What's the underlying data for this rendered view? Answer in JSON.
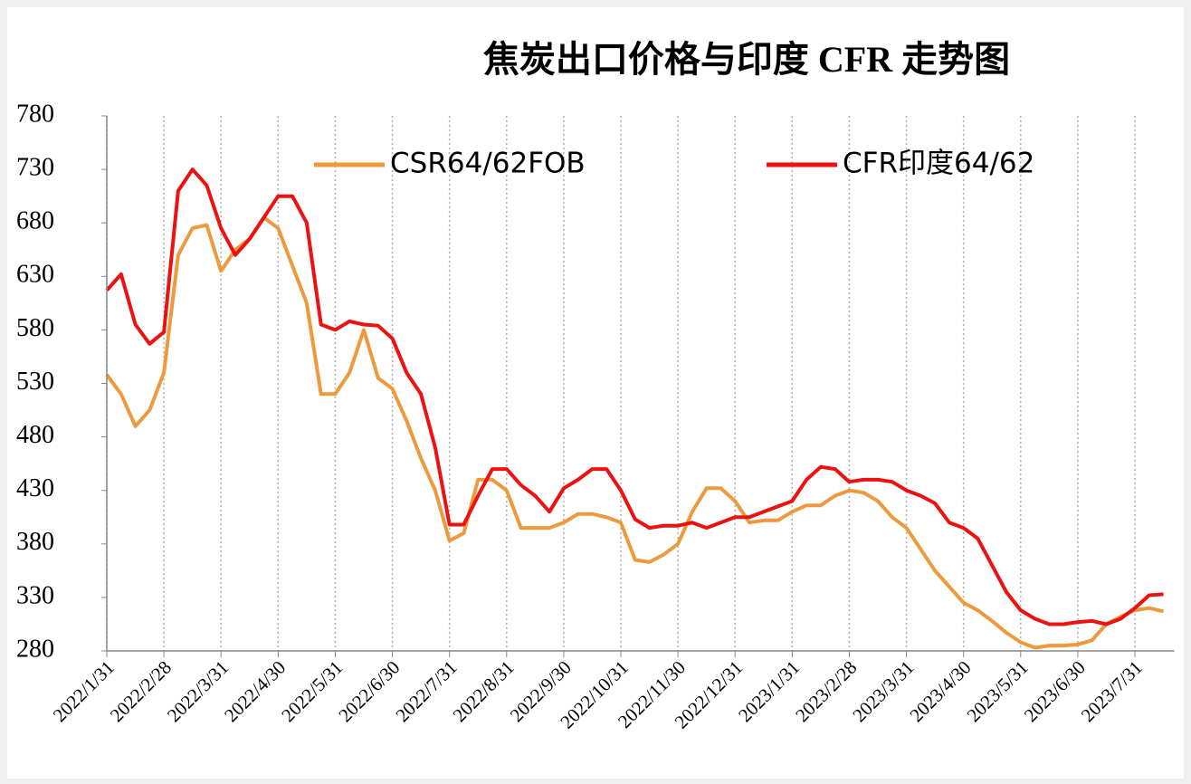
{
  "chart_data": {
    "type": "line",
    "title": "焦炭出口价格与印度 CFR 走势图",
    "categories": [
      "2022/1/31",
      null,
      null,
      null,
      "2022/2/28",
      null,
      null,
      null,
      "2022/3/31",
      null,
      null,
      null,
      "2022/4/30",
      null,
      null,
      null,
      "2022/5/31",
      null,
      null,
      null,
      "2022/6/30",
      null,
      null,
      null,
      "2022/7/31",
      null,
      null,
      null,
      "2022/8/31",
      null,
      null,
      null,
      "2022/9/30",
      null,
      null,
      null,
      "2022/10/31",
      null,
      null,
      null,
      "2022/11/30",
      null,
      null,
      null,
      "2022/12/31",
      null,
      null,
      null,
      "2023/1/31",
      null,
      null,
      null,
      "2023/2/28",
      null,
      null,
      null,
      "2023/3/31",
      null,
      null,
      null,
      "2023/4/30",
      null,
      null,
      null,
      "2023/5/31",
      null,
      null,
      null,
      "2023/6/30",
      null,
      null,
      null,
      "2023/7/31",
      null,
      null
    ],
    "series": [
      {
        "name": "CSR64/62FOB",
        "color": "#ed9a3e",
        "values": [
          538,
          520,
          490,
          505,
          540,
          650,
          675,
          678,
          635,
          655,
          665,
          685,
          675,
          640,
          605,
          520,
          520,
          540,
          580,
          535,
          525,
          495,
          460,
          430,
          383,
          390,
          440,
          440,
          430,
          395,
          395,
          395,
          400,
          408,
          408,
          405,
          400,
          365,
          363,
          370,
          380,
          410,
          432,
          432,
          420,
          400,
          402,
          402,
          410,
          416,
          416,
          425,
          430,
          428,
          420,
          405,
          395,
          375,
          355,
          340,
          325,
          318,
          308,
          297,
          288,
          283,
          285,
          285,
          286,
          290,
          305,
          312,
          318,
          320,
          317
        ]
      },
      {
        "name": "CFR印度64/62",
        "color": "#ee1111",
        "values": [
          617,
          632,
          585,
          567,
          578,
          710,
          730,
          715,
          675,
          650,
          665,
          685,
          705,
          705,
          680,
          585,
          580,
          588,
          585,
          584,
          572,
          540,
          520,
          470,
          398,
          398,
          425,
          450,
          450,
          435,
          425,
          410,
          432,
          440,
          450,
          450,
          430,
          403,
          395,
          397,
          397,
          400,
          395,
          400,
          405,
          405,
          410,
          415,
          420,
          440,
          452,
          450,
          438,
          440,
          440,
          438,
          430,
          425,
          418,
          400,
          395,
          385,
          360,
          335,
          318,
          310,
          305,
          305,
          307,
          308,
          305,
          310,
          320,
          332,
          333
        ]
      }
    ],
    "ylim": [
      280,
      780
    ],
    "yticks": [
      280,
      330,
      380,
      430,
      480,
      530,
      580,
      630,
      680,
      730,
      780
    ],
    "xgrid": true
  }
}
